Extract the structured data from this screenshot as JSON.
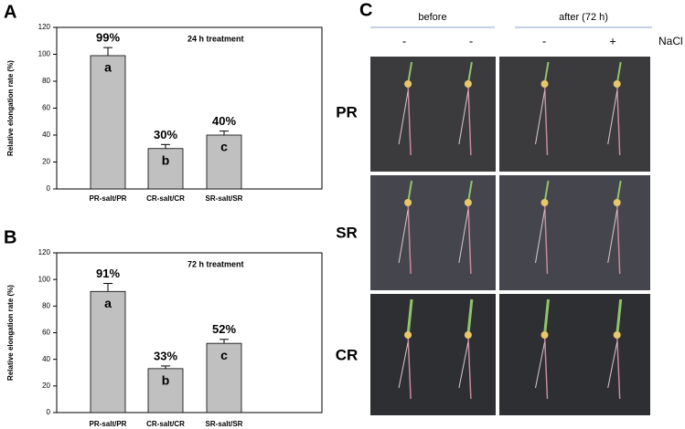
{
  "chart_data": [
    {
      "type": "bar",
      "panel_label": "A",
      "annotation": "24 h treatment",
      "y_label": "Relative elongation rate (%)",
      "categories": [
        "PR-salt/PR",
        "CR-salt/CR",
        "SR-salt/SR"
      ],
      "values": [
        99,
        30,
        40
      ],
      "value_labels": [
        "99%",
        "30%",
        "40%"
      ],
      "errors": [
        6,
        3,
        3
      ],
      "group_letters": [
        "a",
        "b",
        "c"
      ],
      "color": "#c0c0c0",
      "ylim": [
        0,
        120
      ],
      "yticks": [
        0,
        20,
        40,
        60,
        80,
        100,
        120
      ]
    },
    {
      "type": "bar",
      "panel_label": "B",
      "annotation": "72 h treatment",
      "y_label": "Relative elongation rate (%)",
      "categories": [
        "PR-salt/PR",
        "CR-salt/CR",
        "SR-salt/SR"
      ],
      "values": [
        91,
        33,
        52
      ],
      "value_labels": [
        "91%",
        "33%",
        "52%"
      ],
      "errors": [
        6,
        2,
        3
      ],
      "group_letters": [
        "a",
        "b",
        "c"
      ],
      "color": "#c0c0c0",
      "ylim": [
        0,
        120
      ],
      "yticks": [
        0,
        20,
        40,
        60,
        80,
        100,
        120
      ]
    }
  ],
  "photo_panel": {
    "panel_label": "C",
    "headers": [
      "before",
      "after (72 h)"
    ],
    "nacl_signs": [
      "-",
      "-",
      "-",
      "+"
    ],
    "nacl_label": "NaCl",
    "rows": [
      "PR",
      "SR",
      "CR"
    ]
  }
}
